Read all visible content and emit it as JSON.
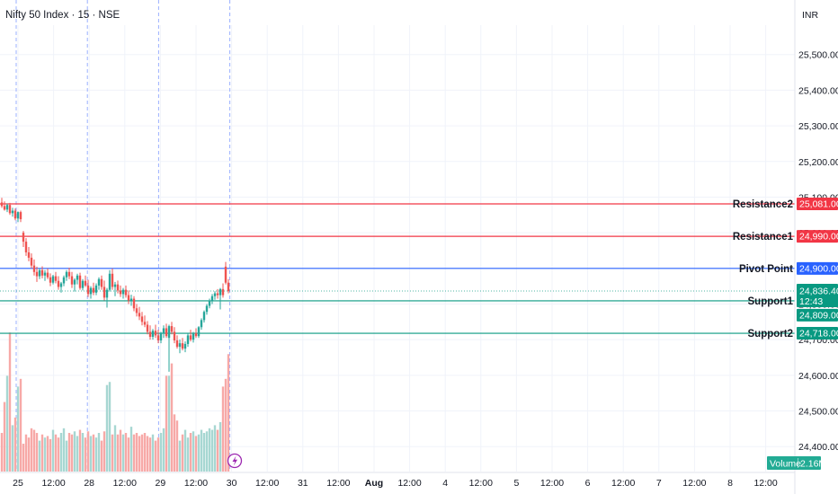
{
  "header": {
    "title": "Nifty 50 Index · 15 · NSE",
    "currency": "INR"
  },
  "colors": {
    "up": "#26a69a",
    "down": "#ef5350",
    "volume_up": "#a7d7d2",
    "volume_down": "#f7a9a7",
    "resistance": "#f23645",
    "pivot": "#2962ff",
    "support": "#089981",
    "last_price": "#089981",
    "session_line": "#9bb0ff",
    "grid": "#f0f3fa"
  },
  "chart_data": {
    "type": "candlestick",
    "ylim": [
      24330,
      25580
    ],
    "y_ticks": [
      25500,
      25400,
      25300,
      25200,
      25100,
      25000,
      24900,
      24800,
      24700,
      24600,
      24500,
      24400
    ],
    "y_tick_labels": [
      "25,500.00",
      "25,400.00",
      "25,300.00",
      "25,200.00",
      "25,100.00",
      "25,000.00",
      "24,900.00",
      "24,800.00",
      "24,700.00",
      "24,600.00",
      "24,500.00",
      "24,400.00"
    ],
    "x_ticks": [
      "25",
      "12:00",
      "28",
      "12:00",
      "29",
      "12:00",
      "30",
      "12:00",
      "31",
      "12:00",
      "Aug",
      "12:00",
      "4",
      "12:00",
      "5",
      "12:00",
      "6",
      "12:00",
      "7",
      "12:00",
      "8",
      "12:00"
    ],
    "bold_x_ticks": [
      "Aug"
    ],
    "session_starts": [
      "25",
      "28",
      "29",
      "30"
    ],
    "levels": [
      {
        "name": "Resistance2",
        "value": 25081.0,
        "label": "25,081.00",
        "kind": "resistance"
      },
      {
        "name": "Resistance1",
        "value": 24990.0,
        "label": "24,990.00",
        "kind": "resistance"
      },
      {
        "name": "Pivot Point",
        "value": 24900.0,
        "label": "24,900.00",
        "kind": "pivot"
      },
      {
        "name": "Support1",
        "value": 24809.0,
        "label": "24,809.00",
        "kind": "support"
      },
      {
        "name": "Support2",
        "value": 24718.0,
        "label": "24,718.00",
        "kind": "support"
      }
    ],
    "last_price": {
      "value": 24836.4,
      "label": "24,836.40",
      "countdown": "12:43"
    },
    "volume": {
      "label": "Volume",
      "value": "2.16M"
    },
    "candles": [
      [
        25085,
        25098,
        25070,
        25075
      ],
      [
        25075,
        25088,
        25062,
        25065
      ],
      [
        25065,
        25082,
        25058,
        25078
      ],
      [
        25078,
        25084,
        25050,
        25055
      ],
      [
        25055,
        25070,
        25045,
        25062
      ],
      [
        25062,
        25068,
        25035,
        25040
      ],
      [
        25040,
        25060,
        25030,
        25058
      ],
      [
        25058,
        25062,
        25030,
        25038
      ],
      [
        25000,
        25005,
        24960,
        24975
      ],
      [
        24975,
        24985,
        24935,
        24945
      ],
      [
        24945,
        24960,
        24920,
        24930
      ],
      [
        24930,
        24942,
        24900,
        24908
      ],
      [
        24908,
        24925,
        24880,
        24890
      ],
      [
        24890,
        24905,
        24862,
        24878
      ],
      [
        24878,
        24900,
        24870,
        24895
      ],
      [
        24895,
        24906,
        24872,
        24880
      ],
      [
        24880,
        24895,
        24865,
        24888
      ],
      [
        24888,
        24900,
        24870,
        24875
      ],
      [
        24875,
        24886,
        24850,
        24860
      ],
      [
        24860,
        24882,
        24855,
        24878
      ],
      [
        24878,
        24890,
        24858,
        24865
      ],
      [
        24865,
        24878,
        24840,
        24848
      ],
      [
        24848,
        24862,
        24832,
        24858
      ],
      [
        24858,
        24880,
        24850,
        24875
      ],
      [
        24875,
        24895,
        24865,
        24890
      ],
      [
        24890,
        24902,
        24870,
        24878
      ],
      [
        24878,
        24890,
        24845,
        24855
      ],
      [
        24855,
        24872,
        24835,
        24868
      ],
      [
        24868,
        24885,
        24855,
        24880
      ],
      [
        24880,
        24888,
        24840,
        24845
      ],
      [
        24845,
        24870,
        24838,
        24865
      ],
      [
        24865,
        24880,
        24848,
        24852
      ],
      [
        24852,
        24868,
        24820,
        24828
      ],
      [
        24828,
        24850,
        24815,
        24845
      ],
      [
        24845,
        24860,
        24825,
        24832
      ],
      [
        24832,
        24858,
        24825,
        24852
      ],
      [
        24852,
        24875,
        24840,
        24870
      ],
      [
        24870,
        24880,
        24840,
        24848
      ],
      [
        24848,
        24866,
        24810,
        24818
      ],
      [
        24818,
        24845,
        24790,
        24840
      ],
      [
        24840,
        24895,
        24835,
        24885
      ],
      [
        24885,
        24900,
        24840,
        24848
      ],
      [
        24848,
        24862,
        24822,
        24855
      ],
      [
        24855,
        24866,
        24830,
        24838
      ],
      [
        24838,
        24852,
        24820,
        24828
      ],
      [
        24828,
        24845,
        24815,
        24840
      ],
      [
        24840,
        24852,
        24818,
        24825
      ],
      [
        24825,
        24838,
        24800,
        24810
      ],
      [
        24810,
        24826,
        24795,
        24815
      ],
      [
        24815,
        24822,
        24780,
        24788
      ],
      [
        24788,
        24800,
        24765,
        24775
      ],
      [
        24775,
        24792,
        24755,
        24765
      ],
      [
        24765,
        24778,
        24740,
        24750
      ],
      [
        24750,
        24768,
        24735,
        24742
      ],
      [
        24742,
        24752,
        24715,
        24722
      ],
      [
        24722,
        24740,
        24700,
        24708
      ],
      [
        24708,
        24730,
        24700,
        24725
      ],
      [
        24725,
        24742,
        24705,
        24712
      ],
      [
        24712,
        24728,
        24690,
        24698
      ],
      [
        24698,
        24722,
        24690,
        24718
      ],
      [
        24718,
        24740,
        24705,
        24732
      ],
      [
        24732,
        24745,
        24705,
        24710
      ],
      [
        24705,
        24742,
        24610,
        24738
      ],
      [
        24738,
        24750,
        24715,
        24722
      ],
      [
        24722,
        24735,
        24690,
        24698
      ],
      [
        24698,
        24712,
        24675,
        24680
      ],
      [
        24680,
        24700,
        24662,
        24690
      ],
      [
        24690,
        24705,
        24670,
        24675
      ],
      [
        24675,
        24695,
        24665,
        24688
      ],
      [
        24688,
        24718,
        24680,
        24712
      ],
      [
        24712,
        24728,
        24695,
        24700
      ],
      [
        24700,
        24722,
        24692,
        24718
      ],
      [
        24718,
        24732,
        24705,
        24710
      ],
      [
        24710,
        24738,
        24705,
        24735
      ],
      [
        24735,
        24760,
        24728,
        24755
      ],
      [
        24755,
        24782,
        24748,
        24778
      ],
      [
        24778,
        24800,
        24770,
        24795
      ],
      [
        24795,
        24815,
        24788,
        24810
      ],
      [
        24810,
        24828,
        24800,
        24822
      ],
      [
        24822,
        24836,
        24812,
        24830
      ],
      [
        24830,
        24842,
        24815,
        24825
      ],
      [
        24825,
        24845,
        24785,
        24842
      ],
      [
        24842,
        24858,
        24818,
        24825
      ],
      [
        24905,
        24918,
        24855,
        24860
      ],
      [
        24860,
        24870,
        24830,
        24836
      ]
    ],
    "volumes": [
      0.25,
      0.45,
      0.62,
      0.9,
      0.3,
      0.35,
      0.55,
      0.6,
      0.18,
      0.24,
      0.22,
      0.28,
      0.27,
      0.25,
      0.2,
      0.24,
      0.22,
      0.23,
      0.21,
      0.27,
      0.24,
      0.22,
      0.25,
      0.28,
      0.2,
      0.25,
      0.24,
      0.26,
      0.23,
      0.27,
      0.25,
      0.22,
      0.26,
      0.23,
      0.24,
      0.22,
      0.25,
      0.2,
      0.26,
      0.56,
      0.58,
      0.24,
      0.3,
      0.24,
      0.27,
      0.24,
      0.25,
      0.22,
      0.29,
      0.24,
      0.25,
      0.23,
      0.24,
      0.25,
      0.23,
      0.22,
      0.24,
      0.2,
      0.22,
      0.25,
      0.28,
      0.62,
      0.62,
      0.7,
      0.37,
      0.33,
      0.2,
      0.24,
      0.27,
      0.22,
      0.25,
      0.26,
      0.23,
      0.24,
      0.27,
      0.25,
      0.26,
      0.28,
      0.27,
      0.3,
      0.27,
      0.32,
      0.55,
      0.6,
      0.76
    ]
  }
}
